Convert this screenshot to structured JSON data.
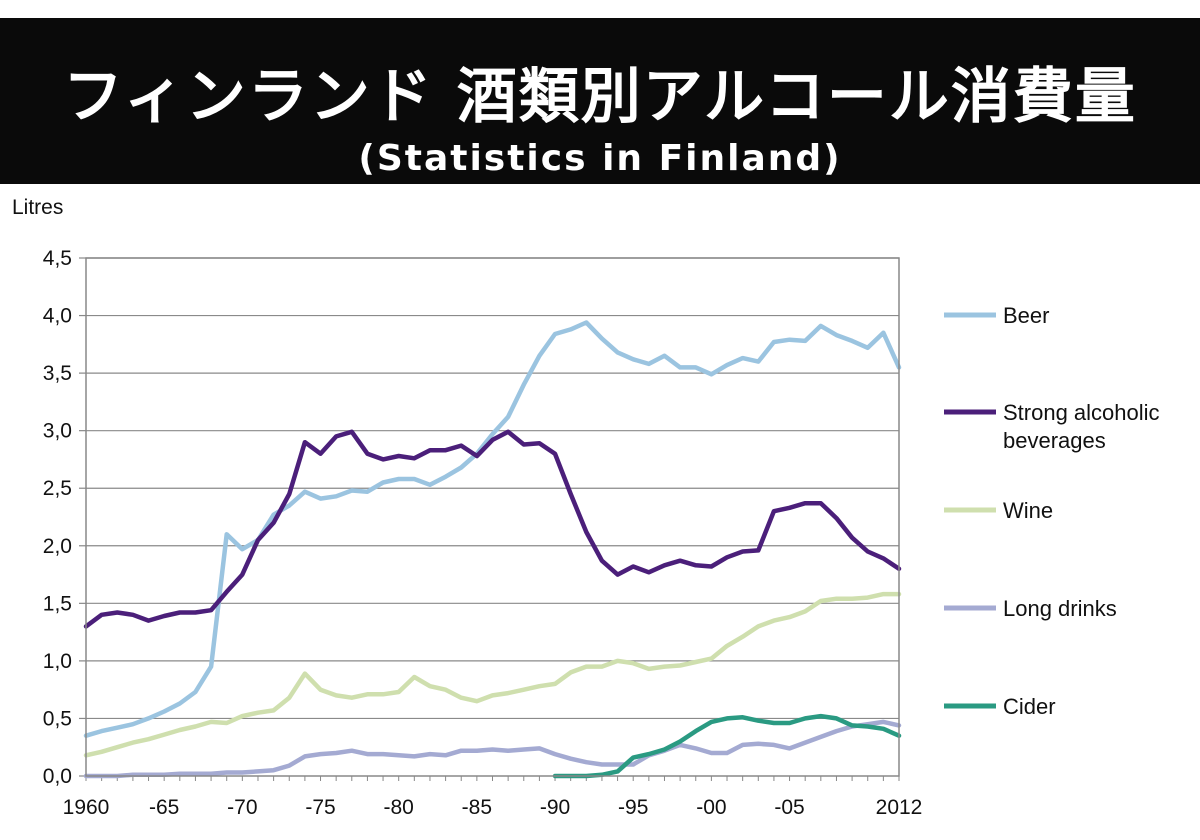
{
  "header": {
    "title": "フィンランド 酒類別アルコール消費量",
    "subtitle": "(Statistics in Finland)"
  },
  "chart_data": {
    "type": "line",
    "ylabel": "Litres",
    "ylim": [
      0,
      4.5
    ],
    "xlim": [
      1960,
      2012
    ],
    "grid": true,
    "legend_position": "right",
    "y_tick_labels": [
      "0,0",
      "0,5",
      "1,0",
      "1,5",
      "2,0",
      "2,5",
      "3,0",
      "3,5",
      "4,0",
      "4,5"
    ],
    "x_ticks": [
      {
        "year": 1960,
        "label": "1960"
      },
      {
        "year": 1965,
        "label": "-65"
      },
      {
        "year": 1970,
        "label": "-70"
      },
      {
        "year": 1975,
        "label": "-75"
      },
      {
        "year": 1980,
        "label": "-80"
      },
      {
        "year": 1985,
        "label": "-85"
      },
      {
        "year": 1990,
        "label": "-90"
      },
      {
        "year": 1995,
        "label": "-95"
      },
      {
        "year": 2000,
        "label": "-00"
      },
      {
        "year": 2005,
        "label": "-05"
      },
      {
        "year": 2012,
        "label": "2012"
      }
    ],
    "series": [
      {
        "name": "Beer",
        "color": "#9bc4e0",
        "start_year": 1960,
        "values": [
          0.35,
          0.39,
          0.42,
          0.45,
          0.5,
          0.56,
          0.63,
          0.73,
          0.95,
          2.1,
          1.97,
          2.05,
          2.27,
          2.35,
          2.47,
          2.41,
          2.43,
          2.48,
          2.47,
          2.55,
          2.58,
          2.58,
          2.53,
          2.6,
          2.68,
          2.8,
          2.97,
          3.12,
          3.4,
          3.65,
          3.84,
          3.88,
          3.94,
          3.8,
          3.68,
          3.62,
          3.58,
          3.65,
          3.55,
          3.55,
          3.49,
          3.57,
          3.63,
          3.6,
          3.77,
          3.79,
          3.78,
          3.91,
          3.83,
          3.78,
          3.72,
          3.85,
          3.55
        ]
      },
      {
        "name": "Strong alcoholic beverages",
        "legend_lines": [
          "Strong alcoholic",
          "beverages"
        ],
        "color": "#4b1f7a",
        "start_year": 1960,
        "values": [
          1.3,
          1.4,
          1.42,
          1.4,
          1.35,
          1.39,
          1.42,
          1.42,
          1.44,
          1.6,
          1.75,
          2.05,
          2.2,
          2.45,
          2.9,
          2.8,
          2.95,
          2.99,
          2.8,
          2.75,
          2.78,
          2.76,
          2.83,
          2.83,
          2.87,
          2.78,
          2.92,
          2.99,
          2.88,
          2.89,
          2.8,
          2.45,
          2.12,
          1.87,
          1.75,
          1.82,
          1.77,
          1.83,
          1.87,
          1.83,
          1.82,
          1.9,
          1.95,
          1.96,
          2.3,
          2.33,
          2.37,
          2.37,
          2.24,
          2.07,
          1.95,
          1.89,
          1.8
        ]
      },
      {
        "name": "Wine",
        "color": "#cfdfae",
        "start_year": 1960,
        "values": [
          0.18,
          0.21,
          0.25,
          0.29,
          0.32,
          0.36,
          0.4,
          0.43,
          0.47,
          0.46,
          0.52,
          0.55,
          0.57,
          0.68,
          0.89,
          0.75,
          0.7,
          0.68,
          0.71,
          0.71,
          0.73,
          0.86,
          0.78,
          0.75,
          0.68,
          0.65,
          0.7,
          0.72,
          0.75,
          0.78,
          0.8,
          0.9,
          0.95,
          0.95,
          1.0,
          0.98,
          0.93,
          0.95,
          0.96,
          0.99,
          1.02,
          1.13,
          1.21,
          1.3,
          1.35,
          1.38,
          1.43,
          1.52,
          1.54,
          1.54,
          1.55,
          1.58,
          1.58
        ]
      },
      {
        "name": "Long drinks",
        "color": "#a4aad2",
        "start_year": 1960,
        "values": [
          0.0,
          0.0,
          0.0,
          0.01,
          0.01,
          0.01,
          0.02,
          0.02,
          0.02,
          0.03,
          0.03,
          0.04,
          0.05,
          0.09,
          0.17,
          0.19,
          0.2,
          0.22,
          0.19,
          0.19,
          0.18,
          0.17,
          0.19,
          0.18,
          0.22,
          0.22,
          0.23,
          0.22,
          0.23,
          0.24,
          0.19,
          0.15,
          0.12,
          0.1,
          0.1,
          0.1,
          0.18,
          0.22,
          0.27,
          0.24,
          0.2,
          0.2,
          0.27,
          0.28,
          0.27,
          0.24,
          0.29,
          0.34,
          0.39,
          0.43,
          0.45,
          0.47,
          0.44
        ]
      },
      {
        "name": "Cider",
        "color": "#2a9a82",
        "start_year": 1990,
        "values": [
          0.0,
          0.0,
          0.0,
          0.01,
          0.04,
          0.16,
          0.19,
          0.23,
          0.3,
          0.39,
          0.47,
          0.5,
          0.51,
          0.48,
          0.46,
          0.46,
          0.5,
          0.52,
          0.5,
          0.44,
          0.43,
          0.41,
          0.35
        ]
      }
    ]
  }
}
